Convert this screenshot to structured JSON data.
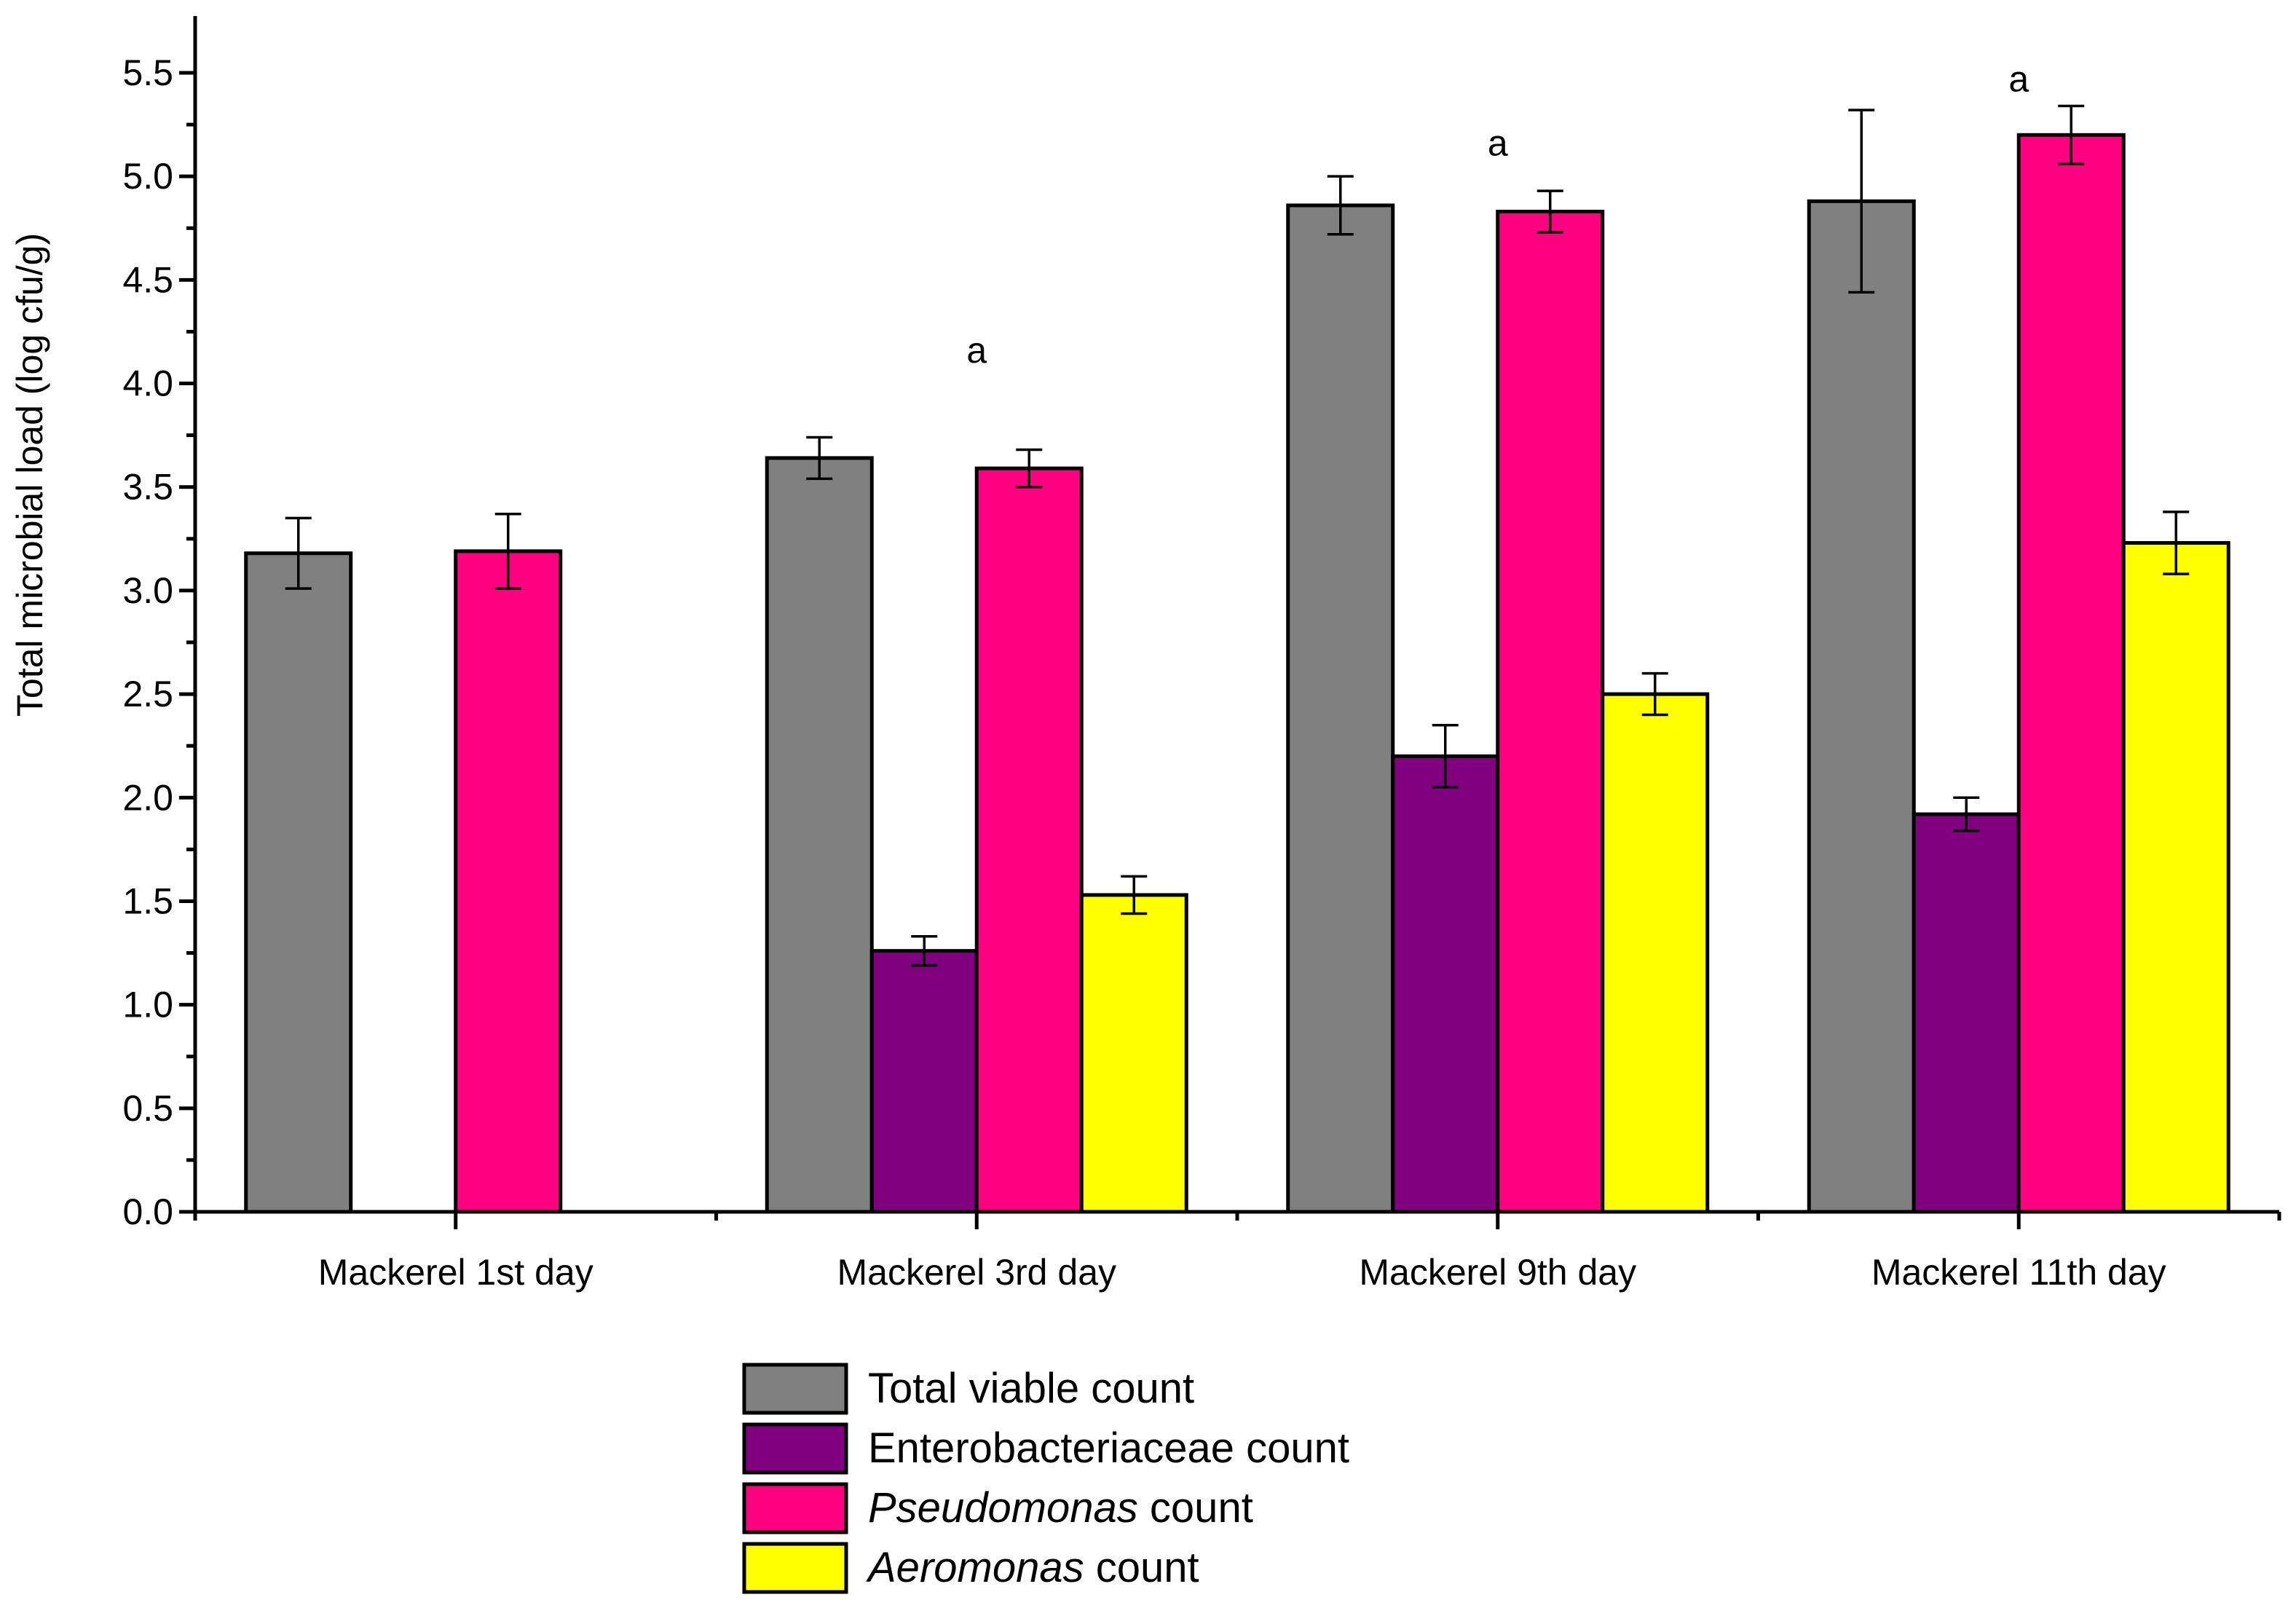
{
  "chart_data": {
    "type": "bar",
    "title": "",
    "xlabel": "",
    "ylabel": "Total microbial load (log cfu/g)",
    "ylim": [
      0,
      5.5
    ],
    "yticks": [
      "0.0",
      "0.5",
      "1.0",
      "1.5",
      "2.0",
      "2.5",
      "3.0",
      "3.5",
      "4.0",
      "4.5",
      "5.0",
      "5.5"
    ],
    "categories": [
      "Mackerel 1st day",
      "Mackerel 3rd day",
      "Mackerel 9th day",
      "Mackerel 11th day"
    ],
    "series": [
      {
        "name": "Total viable count",
        "legend_label": "Total viable count",
        "legend_italic": "",
        "legend_rest": "Total viable count",
        "color": "#808080",
        "values": [
          3.18,
          3.64,
          4.86,
          4.88
        ],
        "errors": [
          0.17,
          0.1,
          0.14,
          0.44
        ]
      },
      {
        "name": "Enterobacteriaceae count",
        "legend_label": "Enterobacteriaceae count",
        "legend_italic": "",
        "legend_rest": "Enterobacteriaceae count",
        "color": "#800080",
        "values": [
          null,
          1.26,
          2.2,
          1.92
        ],
        "errors": [
          null,
          0.07,
          0.15,
          0.08
        ]
      },
      {
        "name": "Pseudomonas count",
        "legend_label": "Pseudomonas count",
        "legend_italic": "Pseudomonas",
        "legend_rest": " count",
        "color": "#ff0080",
        "values": [
          3.19,
          3.59,
          4.83,
          5.2
        ],
        "errors": [
          0.18,
          0.09,
          0.1,
          0.14
        ]
      },
      {
        "name": "Aeromonas count",
        "legend_label": "Aeromonas count",
        "legend_italic": "Aeromonas",
        "legend_rest": " count",
        "color": "#ffff00",
        "values": [
          null,
          1.53,
          2.5,
          3.23
        ],
        "errors": [
          null,
          0.09,
          0.1,
          0.15
        ]
      }
    ],
    "annotations": [
      {
        "text": "a",
        "category": "Mackerel 3rd day",
        "y": 4.1
      },
      {
        "text": "a",
        "category": "Mackerel 9th day",
        "y": 5.1
      },
      {
        "text": "a",
        "category": "Mackerel 11th day",
        "y": 5.41
      }
    ],
    "legend_position": "bottom-center"
  }
}
